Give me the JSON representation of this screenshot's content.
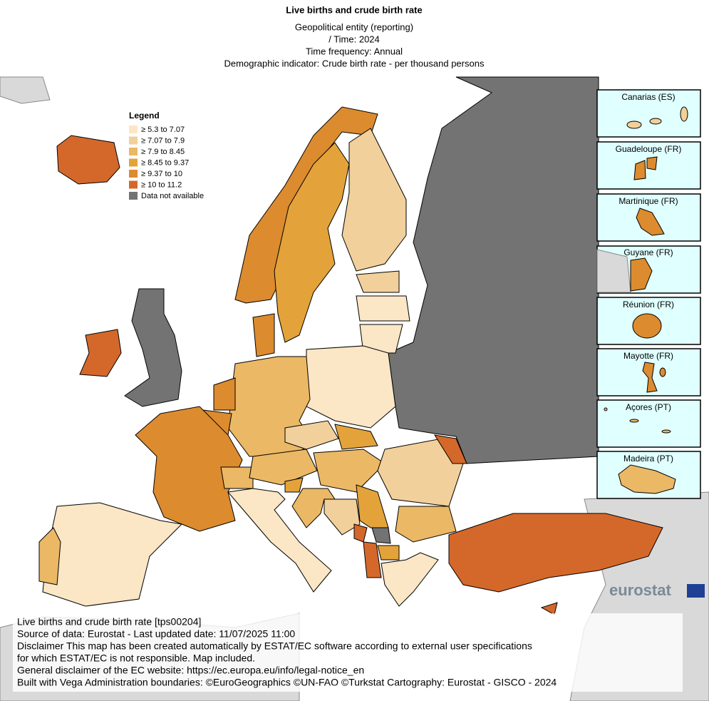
{
  "header": {
    "title": "Live births and crude birth rate",
    "lines": [
      "Geopolitical entity (reporting)",
      "/ Time:  2024",
      "Time frequency:  Annual",
      "Demographic indicator:  Crude birth rate - per thousand persons"
    ]
  },
  "legend": {
    "title": "Legend",
    "items": [
      {
        "label": "≥ 5.3 to 7.07",
        "color": "#fbe6c5"
      },
      {
        "label": "≥ 7.07 to 7.9",
        "color": "#f2d09b"
      },
      {
        "label": "≥ 7.9 to 8.45",
        "color": "#ebb865"
      },
      {
        "label": "≥ 8.45 to 9.37",
        "color": "#e3a33a"
      },
      {
        "label": "≥ 9.37 to 10",
        "color": "#dc8b2e"
      },
      {
        "label": "≥ 10 to 11.2",
        "color": "#d4682b"
      },
      {
        "label": "Data not available",
        "color": "#737373"
      }
    ]
  },
  "insets": [
    "Canarias (ES)",
    "Guadeloupe (FR)",
    "Martinique (FR)",
    "Guyane (FR)",
    "Réunion (FR)",
    "Mayotte (FR)",
    "Açores (PT)",
    "Madeira (PT)"
  ],
  "logo": "eurostat",
  "footer": [
    "Live births and crude birth rate [tps00204]",
    "Source of data: Eurostat - Last updated date: 11/07/2025 11:00",
    "Disclaimer This map has been created automatically by ESTAT/EC software according to external user specifications",
    "for which ESTAT/EC is not responsible. Map included.",
    "General disclaimer of the EC website: https://ec.europa.eu/info/legal-notice_en",
    "Built with Vega Administration boundaries: ©EuroGeographics ©UN-FAO ©Turkstat Cartography: Eurostat - GISCO - 2024"
  ]
}
